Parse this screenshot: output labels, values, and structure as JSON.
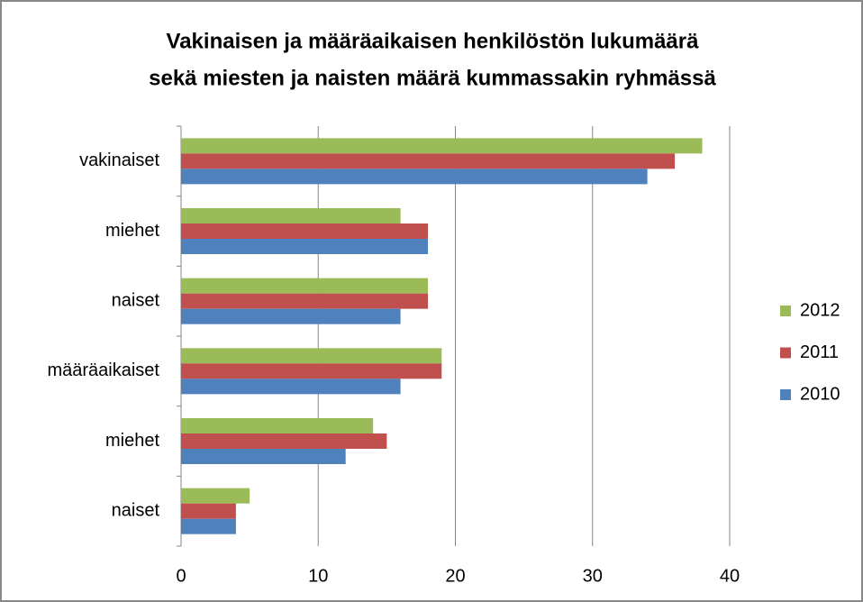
{
  "chart_data": {
    "type": "hbar",
    "title": [
      "Vakinaisen ja määräaikaisen henkilöstön lukumäärä",
      "sekä miesten ja naisten määrä kummassakin ryhmässä"
    ],
    "categories": [
      "vakinaiset",
      "miehet",
      "naiset",
      "määräaikaiset",
      "miehet",
      "naiset"
    ],
    "series": [
      {
        "name": "2012",
        "color": "#9bbb59",
        "values": [
          38,
          16,
          18,
          19,
          14,
          5
        ]
      },
      {
        "name": "2011",
        "color": "#c0504d",
        "values": [
          36,
          18,
          18,
          19,
          15,
          4
        ]
      },
      {
        "name": "2010",
        "color": "#4f81bd",
        "values": [
          34,
          18,
          16,
          16,
          12,
          4
        ]
      }
    ],
    "xlim": [
      0,
      40
    ],
    "xticks": [
      0,
      10,
      20,
      30,
      40
    ],
    "grid": true,
    "legend": "right"
  }
}
